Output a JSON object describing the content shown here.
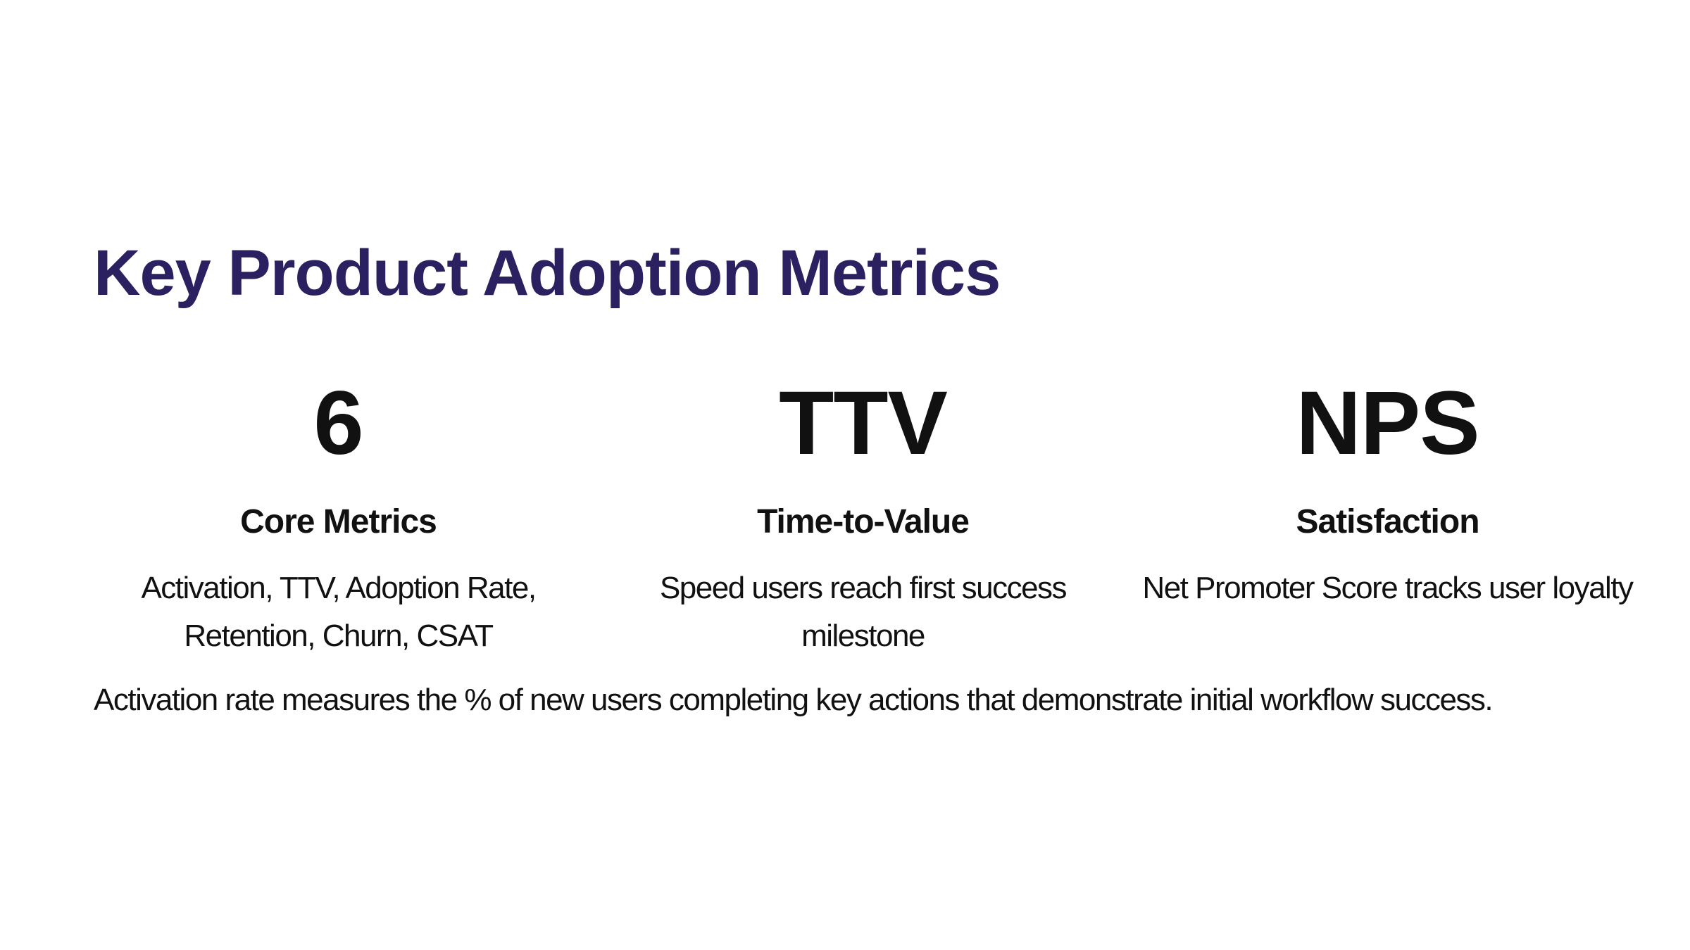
{
  "slide": {
    "title": "Key Product Adoption Metrics",
    "metrics": [
      {
        "stat": "6",
        "label": "Core Metrics",
        "description": "Activation, TTV, Adoption Rate, Retention, Churn, CSAT"
      },
      {
        "stat": "TTV",
        "label": "Time-to-Value",
        "description": "Speed users reach first success milestone"
      },
      {
        "stat": "NPS",
        "label": "Satisfaction",
        "description": "Net Promoter Score tracks user loyalty"
      }
    ],
    "footnote": "Activation rate measures the % of new users completing key actions that demonstrate initial workflow success.",
    "colors": {
      "title": "#2b2060",
      "text": "#111111",
      "background": "#ffffff"
    }
  }
}
